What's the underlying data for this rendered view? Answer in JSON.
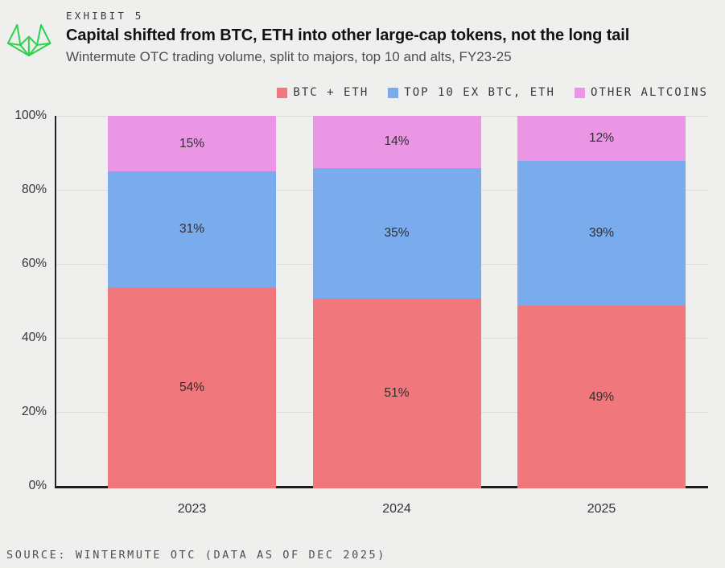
{
  "header": {
    "eyebrow": "EXHIBIT 5",
    "title": "Capital shifted from BTC, ETH into other large-cap tokens, not the long tail",
    "subtitle": "Wintermute OTC trading volume, split to majors, top 10 and alts, FY23-25"
  },
  "legend": [
    {
      "label": "BTC + ETH",
      "color": "#f0787c"
    },
    {
      "label": "TOP 10 EX BTC, ETH",
      "color": "#7aabec"
    },
    {
      "label": "OTHER ALTCOINS",
      "color": "#eb96e5"
    }
  ],
  "chart_data": {
    "type": "bar",
    "stacked": true,
    "title": "Capital shifted from BTC, ETH into other large-cap tokens, not the long tail",
    "subtitle": "Wintermute OTC trading volume, split to majors, top 10 and alts, FY23-25",
    "categories": [
      "2023",
      "2024",
      "2025"
    ],
    "series": [
      {
        "name": "BTC + ETH",
        "color": "#f0787c",
        "values": [
          54,
          51,
          49
        ]
      },
      {
        "name": "TOP 10 EX BTC, ETH",
        "color": "#7aabec",
        "values": [
          31,
          35,
          39
        ]
      },
      {
        "name": "OTHER ALTCOINS",
        "color": "#eb96e5",
        "values": [
          15,
          14,
          12
        ]
      }
    ],
    "y_ticks": [
      "100%",
      "80%",
      "60%",
      "40%",
      "20%",
      "0%"
    ],
    "ylim": [
      0,
      100
    ],
    "grid": true,
    "legend_position": "top-right",
    "value_label_suffix": "%"
  },
  "footer": {
    "source": "SOURCE: WINTERMUTE OTC (DATA AS OF DEC 2025)"
  },
  "colors": {
    "background": "#efefed",
    "gridline": "#dcdcda",
    "axis": "#1d1d1d",
    "logo_green": "#2bd24b",
    "btc_eth": "#f0787c",
    "top10": "#7aabec",
    "other_altcoins": "#eb96e5"
  }
}
